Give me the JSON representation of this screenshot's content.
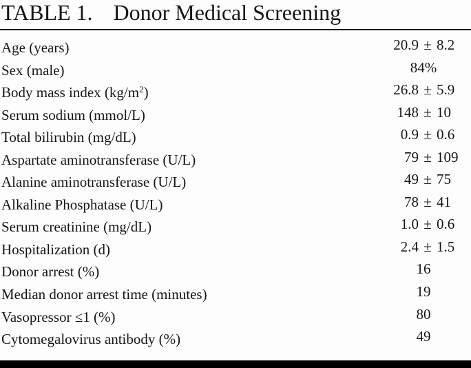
{
  "theme": {
    "page_bg": "#fdfdfd",
    "text": "#161616",
    "rule": "#1a1a1a",
    "bottom_bar": "#000000"
  },
  "table": {
    "title_label": "TABLE 1.",
    "title": "Donor Medical Screening",
    "plus_minus_symbol": "±",
    "rows": [
      {
        "label": "Age (years)",
        "mean": "20.9",
        "pm": "±",
        "sd": "8.2"
      },
      {
        "label": "Sex (male)",
        "center": "84%"
      },
      {
        "label": "Body mass index (kg/m",
        "label_sup": "2",
        "label_suffix": ")",
        "mean": "26.8",
        "pm": "±",
        "sd": "5.9"
      },
      {
        "label": "Serum sodium (mmol/L)",
        "mean": "148",
        "pm": "±",
        "sd": "10"
      },
      {
        "label": "Total bilirubin (mg/dL)",
        "mean": "0.9",
        "pm": "±",
        "sd": "0.6"
      },
      {
        "label": "Aspartate aminotransferase (U/L)",
        "mean": "79",
        "pm": "±",
        "sd": "109"
      },
      {
        "label": "Alanine aminotransferase (U/L)",
        "mean": "49",
        "pm": "±",
        "sd": "75"
      },
      {
        "label": "Alkaline Phosphatase (U/L)",
        "mean": "78",
        "pm": "±",
        "sd": "41"
      },
      {
        "label": "Serum creatinine (mg/dL)",
        "mean": "1.0",
        "pm": "±",
        "sd": "0.6"
      },
      {
        "label": "Hospitalization (d)",
        "mean": "2.4",
        "pm": "±",
        "sd": "1.5"
      },
      {
        "label": "Donor arrest (%)",
        "center": "16"
      },
      {
        "label": "Median donor arrest time (minutes)",
        "center": "19"
      },
      {
        "label": "Vasopressor ≤1 (%)",
        "center": "80"
      },
      {
        "label": "Cytomegalovirus antibody (%)",
        "center": "49"
      }
    ]
  }
}
